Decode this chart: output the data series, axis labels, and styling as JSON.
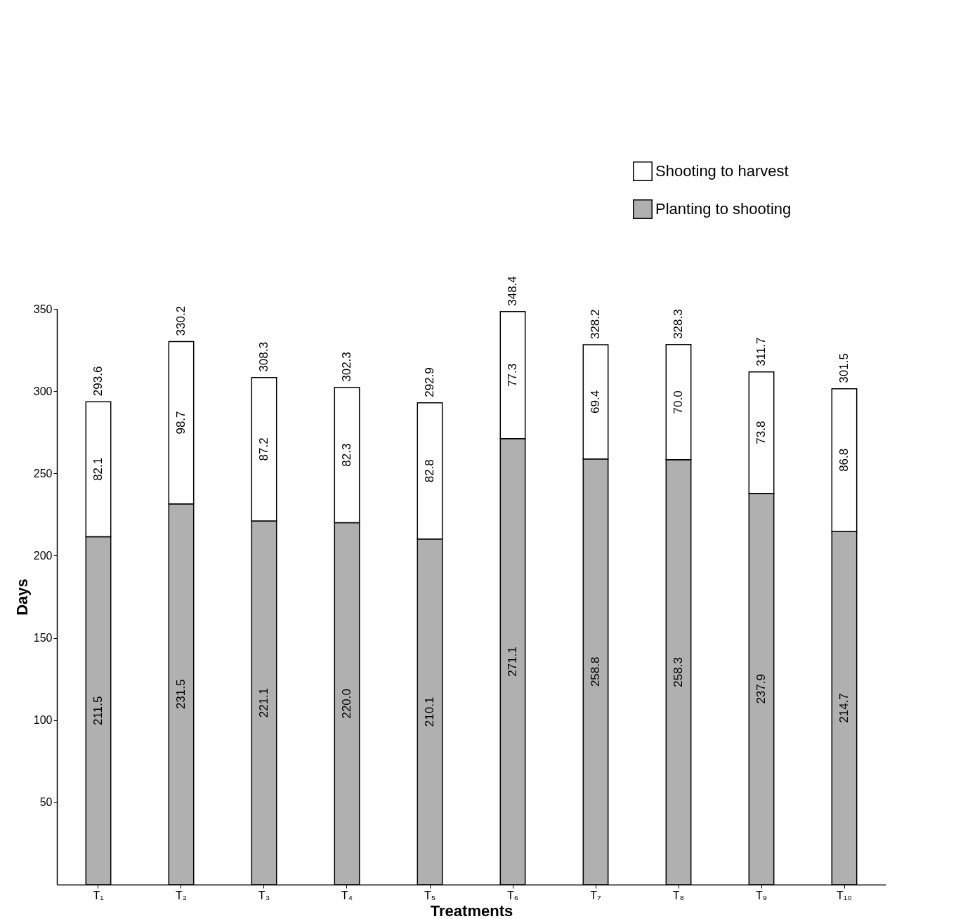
{
  "chart_data": {
    "type": "bar",
    "stacked": true,
    "xlabel": "Treatments",
    "ylabel": "Days",
    "categories": [
      "T₁",
      "T₂",
      "T₃",
      "T₄",
      "T₅",
      "T₆",
      "T₇",
      "T₈",
      "T₉",
      "T₁₀"
    ],
    "series": [
      {
        "name": "Planting to shooting",
        "color": "#b0b0b0",
        "values": [
          211.5,
          231.5,
          221.1,
          220.0,
          210.1,
          271.1,
          258.8,
          258.3,
          237.9,
          214.7
        ],
        "value_labels": [
          "211.5",
          "231.5",
          "221.1",
          "220.0",
          "210.1",
          "271.1",
          "258.8",
          "258.3",
          "237.9",
          "214.7"
        ]
      },
      {
        "name": "Shooting to harvest",
        "color": "#ffffff",
        "values": [
          82.1,
          98.7,
          87.2,
          82.3,
          82.8,
          77.3,
          69.4,
          70.0,
          73.8,
          86.8
        ],
        "value_labels": [
          "82.1",
          "98.7",
          "87.2",
          "82.3",
          "82.8",
          "77.3",
          "69.4",
          "70.0",
          "73.8",
          "86.8"
        ]
      }
    ],
    "totals": [
      "293.6",
      "330.2",
      "308.3",
      "302.3",
      "292.9",
      "348.4",
      "328.2",
      "328.3",
      "311.7",
      "301.5"
    ],
    "ylim": [
      0,
      350
    ],
    "yticks": [
      50,
      100,
      150,
      200,
      250,
      300,
      350
    ],
    "grid": false,
    "legend": "top right"
  }
}
